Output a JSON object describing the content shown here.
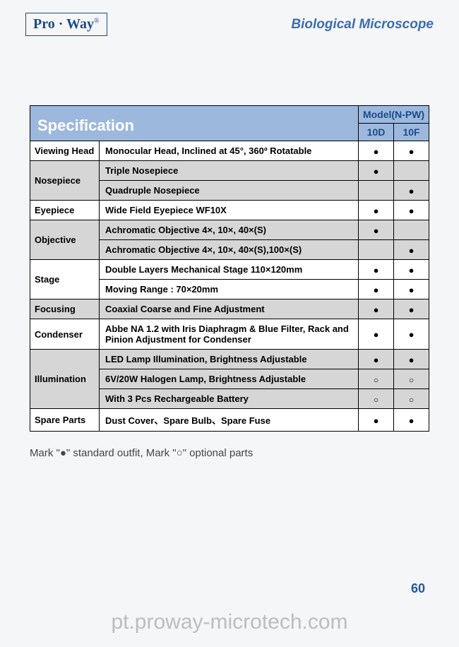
{
  "header": {
    "logo_text": "Pro · Way",
    "logo_reg": "®",
    "title": "Biological Microscope"
  },
  "table": {
    "spec_label": "Specification",
    "model_label": "Model(N-PW)",
    "col1": "10D",
    "col2": "10F",
    "rows": [
      {
        "cat": "Viewing Head",
        "rowspan": 1,
        "desc": "Monocular Head, Inclined at 45°, 360º Rotatable",
        "m1": "dot",
        "m2": "dot",
        "shade": false
      },
      {
        "cat": "Nosepiece",
        "rowspan": 2,
        "desc": "Triple Nosepiece",
        "m1": "dot",
        "m2": "",
        "shade": true
      },
      {
        "cat": null,
        "desc": "Quadruple Nosepiece",
        "m1": "",
        "m2": "dot",
        "shade": true
      },
      {
        "cat": "Eyepiece",
        "rowspan": 1,
        "desc": "Wide Field Eyepiece WF10X",
        "m1": "dot",
        "m2": "dot",
        "shade": false
      },
      {
        "cat": "Objective",
        "rowspan": 2,
        "desc": "Achromatic Objective 4×, 10×, 40×(S)",
        "m1": "dot",
        "m2": "",
        "shade": true
      },
      {
        "cat": null,
        "desc": "Achromatic Objective 4×, 10×, 40×(S),100×(S)",
        "m1": "",
        "m2": "dot",
        "shade": true
      },
      {
        "cat": "Stage",
        "rowspan": 2,
        "desc": "Double Layers Mechanical Stage 110×120mm",
        "m1": "dot",
        "m2": "dot",
        "shade": false
      },
      {
        "cat": null,
        "desc": "Moving Range : 70×20mm",
        "m1": "dot",
        "m2": "dot",
        "shade": false
      },
      {
        "cat": "Focusing",
        "rowspan": 1,
        "desc": "Coaxial Coarse and Fine Adjustment",
        "m1": "dot",
        "m2": "dot",
        "shade": true
      },
      {
        "cat": "Condenser",
        "rowspan": 1,
        "desc": "Abbe NA 1.2 with Iris Diaphragm & Blue Filter, Rack and Pinion Adjustment for Condenser",
        "m1": "dot",
        "m2": "dot",
        "shade": false
      },
      {
        "cat": "Illumination",
        "rowspan": 3,
        "desc": "LED Lamp Illumination, Brightness  Adjustable",
        "m1": "dot",
        "m2": "dot",
        "shade": true
      },
      {
        "cat": null,
        "desc": "6V/20W Halogen Lamp, Brightness Adjustable",
        "m1": "circ",
        "m2": "circ",
        "shade": true
      },
      {
        "cat": null,
        "desc": "With 3 Pcs Rechargeable Battery",
        "m1": "circ",
        "m2": "circ",
        "shade": true
      },
      {
        "cat": "Spare Parts",
        "rowspan": 1,
        "desc": "Dust Cover、Spare Bulb、Spare Fuse",
        "m1": "dot",
        "m2": "dot",
        "shade": false
      }
    ]
  },
  "legend": "Mark \"●\" standard outfit,  Mark \"○\" optional parts",
  "pagenum": "60",
  "watermark": "pt.proway-microtech.com"
}
